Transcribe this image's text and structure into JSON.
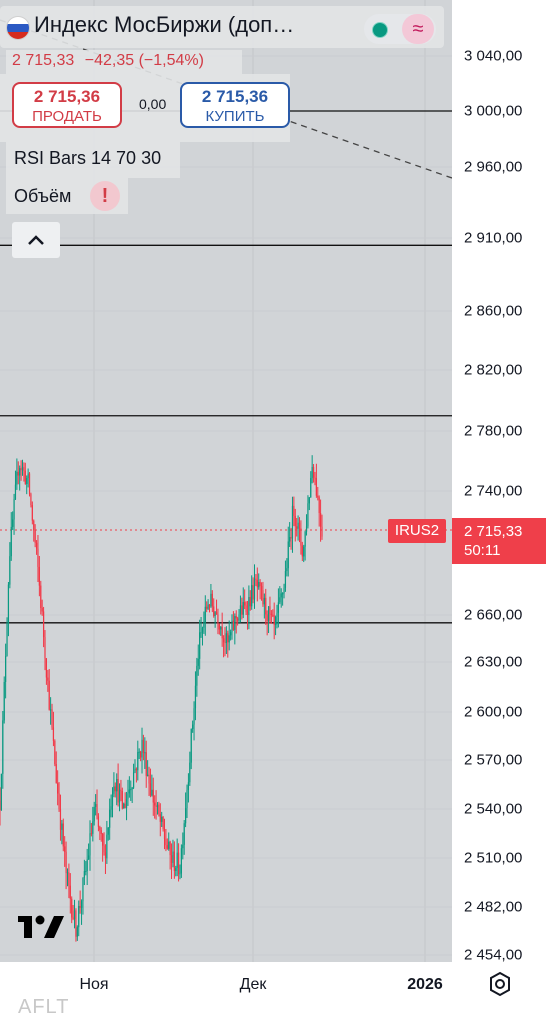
{
  "header": {
    "title": "Индекс МосБиржи (доп…",
    "last_price": "2 715,33",
    "change": "−42,35",
    "change_pct": "(−1,54%)",
    "status_color": "#089981",
    "wave_icon": "wave-icon"
  },
  "trade": {
    "sell_price": "2 715,36",
    "sell_label": "ПРОДАТЬ",
    "buy_price": "2 715,36",
    "buy_label": "КУПИТЬ",
    "spread": "0,00"
  },
  "indicators": {
    "rsi": "RSI Bars 14 70 30",
    "volume": "Объём"
  },
  "price_tag": {
    "ticker": "IRUS2",
    "price": "2 715,33",
    "countdown": "50:11",
    "color": "#ef3f4a"
  },
  "time_axis": [
    "Ноя",
    "Дек",
    "2026"
  ],
  "watermark": "AFLT",
  "chart_data": {
    "type": "candlestick",
    "y_ticks": [
      "3 040,00",
      "3 000,00",
      "2 960,00",
      "2 910,00",
      "2 860,00",
      "2 820,00",
      "2 780,00",
      "2 740,00",
      "2 715,33",
      "2 660,00",
      "2 630,00",
      "2 600,00",
      "2 570,00",
      "2 540,00",
      "2 510,00",
      "2 482,00",
      "2 454,00"
    ],
    "x_ticks": [
      "Ноя",
      "Дек",
      "2026"
    ],
    "horizontal_levels": [
      3000,
      2905,
      2790,
      2655
    ],
    "last_price": 2715.33,
    "close_path": [
      {
        "x": 0.0,
        "y": 2545
      },
      {
        "x": 0.5,
        "y": 2700
      },
      {
        "x": 1.0,
        "y": 2760
      },
      {
        "x": 1.5,
        "y": 2745
      },
      {
        "x": 2.0,
        "y": 2690
      },
      {
        "x": 2.5,
        "y": 2620
      },
      {
        "x": 3.0,
        "y": 2555
      },
      {
        "x": 3.5,
        "y": 2500
      },
      {
        "x": 4.0,
        "y": 2470
      },
      {
        "x": 4.5,
        "y": 2500
      },
      {
        "x": 5.0,
        "y": 2540
      },
      {
        "x": 5.5,
        "y": 2510
      },
      {
        "x": 6.0,
        "y": 2560
      },
      {
        "x": 6.5,
        "y": 2540
      },
      {
        "x": 7.0,
        "y": 2560
      },
      {
        "x": 7.5,
        "y": 2580
      },
      {
        "x": 8.0,
        "y": 2550
      },
      {
        "x": 8.5,
        "y": 2530
      },
      {
        "x": 9.0,
        "y": 2510
      },
      {
        "x": 9.5,
        "y": 2505
      },
      {
        "x": 10.0,
        "y": 2570
      },
      {
        "x": 10.5,
        "y": 2640
      },
      {
        "x": 11.0,
        "y": 2670
      },
      {
        "x": 11.5,
        "y": 2660
      },
      {
        "x": 12.0,
        "y": 2640
      },
      {
        "x": 12.5,
        "y": 2660
      },
      {
        "x": 13.0,
        "y": 2665
      },
      {
        "x": 13.5,
        "y": 2680
      },
      {
        "x": 14.0,
        "y": 2665
      },
      {
        "x": 14.5,
        "y": 2650
      },
      {
        "x": 15.0,
        "y": 2680
      },
      {
        "x": 15.5,
        "y": 2730
      },
      {
        "x": 16.0,
        "y": 2700
      },
      {
        "x": 16.5,
        "y": 2760
      },
      {
        "x": 17.0,
        "y": 2715
      }
    ]
  }
}
